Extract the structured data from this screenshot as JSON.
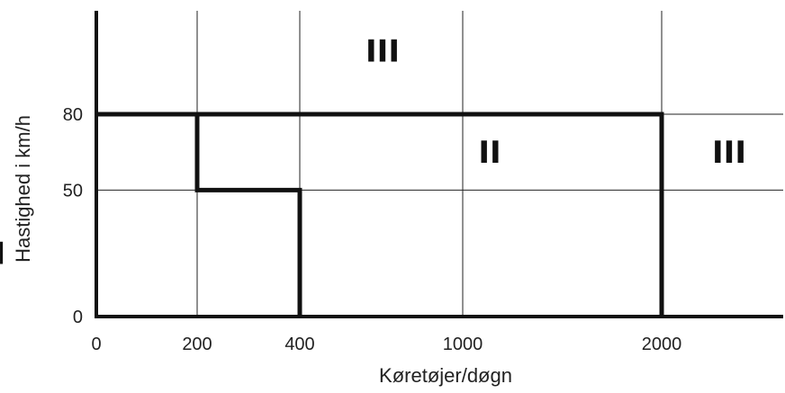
{
  "chart_data": {
    "type": "diagram-zones",
    "xlabel": "Køretøjer/døgn",
    "ylabel": "Hastighed i km/h",
    "x_ticks": [
      "0",
      "200",
      "400",
      "1000",
      "2000"
    ],
    "y_ticks": [
      "0",
      "50",
      "80"
    ],
    "grid": true,
    "zone_labels": [
      {
        "label": "III",
        "x": "600",
        "y": 105
      },
      {
        "label": "II",
        "x": "1200",
        "y": 65
      },
      {
        "label": "III",
        "x": "2600",
        "y": 65
      },
      {
        "label": "I",
        "x": "100",
        "y": 25
      }
    ],
    "boundary": [
      {
        "x": "0",
        "y": 80
      },
      {
        "x": "200",
        "y": 80
      },
      {
        "x": "200",
        "y": 50
      },
      {
        "x": "400",
        "y": 50
      },
      {
        "x": "400",
        "y": 0
      }
    ],
    "boundary2": [
      {
        "x": "200",
        "y": 80
      },
      {
        "x": "2000",
        "y": 80
      },
      {
        "x": "2000",
        "y": 0
      }
    ],
    "colors": {
      "line": "#111111",
      "grid": "#222222"
    }
  }
}
